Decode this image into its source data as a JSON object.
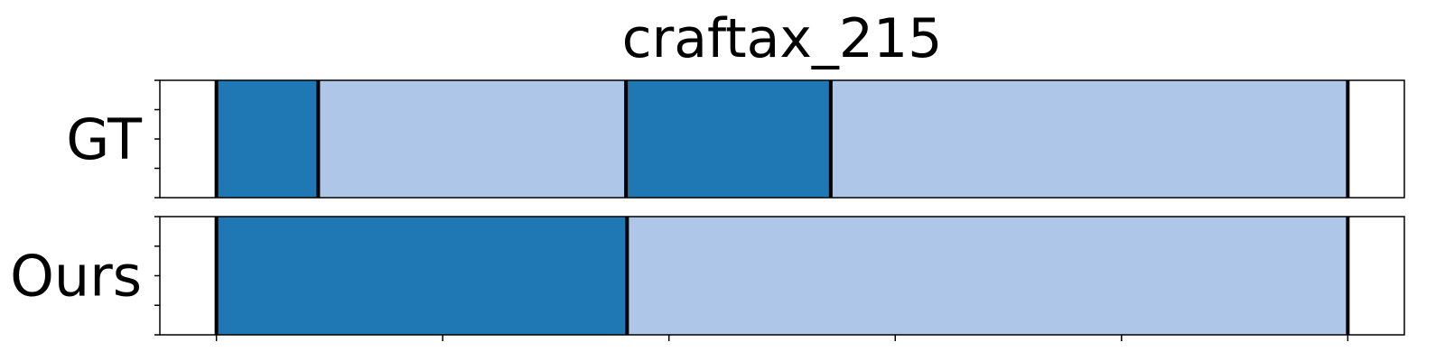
{
  "chart_data": {
    "type": "bar",
    "title": "craftax_215",
    "rows": [
      {
        "label": "GT",
        "segments": [
          {
            "start": 0,
            "end": 90,
            "color": "#1f77b4"
          },
          {
            "start": 90,
            "end": 362,
            "color": "#aec7e8"
          },
          {
            "start": 362,
            "end": 543,
            "color": "#1f77b4"
          },
          {
            "start": 543,
            "end": 1000,
            "color": "#aec7e8"
          }
        ]
      },
      {
        "label": "Ours",
        "segments": [
          {
            "start": 0,
            "end": 363,
            "color": "#1f77b4"
          },
          {
            "start": 363,
            "end": 1000,
            "color": "#aec7e8"
          }
        ]
      }
    ],
    "xlim": [
      -50,
      1050
    ],
    "x_ticks": [
      0,
      200,
      400,
      600,
      800,
      1000
    ],
    "y_ticks_per_row": 5,
    "grid": false,
    "colors": {
      "dark": "#1f77b4",
      "light": "#aec7e8",
      "boundary": "#000000"
    }
  }
}
